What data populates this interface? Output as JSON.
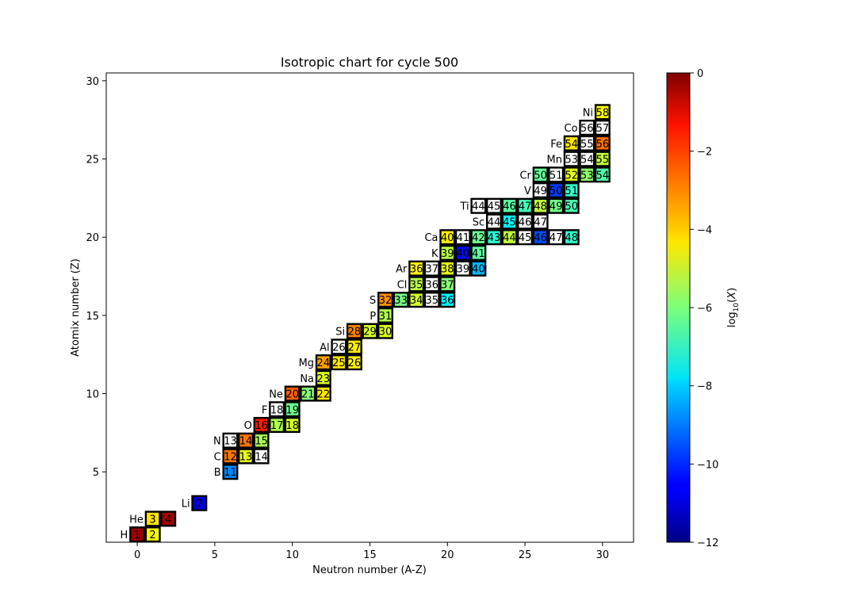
{
  "chart_data": {
    "type": "heatmap",
    "title": "Isotropic chart for cycle 500",
    "xlabel": "Neutron number (A-Z)",
    "ylabel": "Atomix number (Z)",
    "xlim": [
      -2,
      32
    ],
    "ylim": [
      0.5,
      30.5
    ],
    "xticks": [
      0,
      5,
      10,
      15,
      20,
      25,
      30
    ],
    "yticks": [
      5,
      10,
      15,
      20,
      25,
      30
    ],
    "grid": false,
    "colormap": "jet",
    "colorbar": {
      "label": "log10(X)",
      "range": [
        -12,
        0
      ],
      "ticks": [
        0,
        -2,
        -4,
        -6,
        -8,
        -10,
        -12
      ],
      "tick_labels": [
        "0",
        "−2",
        "−4",
        "−6",
        "−8",
        "−10",
        "−12"
      ]
    },
    "elements": [
      {
        "symbol": "H",
        "z": 1,
        "isotopes": [
          {
            "a": 1,
            "log_x": -0.3
          },
          {
            "a": 2,
            "log_x": -4.6
          }
        ]
      },
      {
        "symbol": "He",
        "z": 2,
        "isotopes": [
          {
            "a": 3,
            "log_x": -4.2
          },
          {
            "a": 4,
            "log_x": -0.4
          }
        ]
      },
      {
        "symbol": "Li",
        "z": 3,
        "isotopes": [
          {
            "a": 7,
            "log_x": -11.0
          }
        ]
      },
      {
        "symbol": "B",
        "z": 5,
        "isotopes": [
          {
            "a": 11,
            "log_x": -8.9
          }
        ]
      },
      {
        "symbol": "C",
        "z": 6,
        "isotopes": [
          {
            "a": 12,
            "log_x": -2.9
          },
          {
            "a": 13,
            "log_x": -4.8
          },
          {
            "a": 14,
            "log_x": null
          }
        ]
      },
      {
        "symbol": "N",
        "z": 7,
        "isotopes": [
          {
            "a": 13,
            "log_x": null
          },
          {
            "a": 14,
            "log_x": -2.9
          },
          {
            "a": 15,
            "log_x": -5.5
          }
        ]
      },
      {
        "symbol": "O",
        "z": 8,
        "isotopes": [
          {
            "a": 16,
            "log_x": -1.8
          },
          {
            "a": 17,
            "log_x": -5.4
          },
          {
            "a": 18,
            "log_x": -5.0
          }
        ]
      },
      {
        "symbol": "F",
        "z": 9,
        "isotopes": [
          {
            "a": 18,
            "log_x": null
          },
          {
            "a": 19,
            "log_x": -6.2
          }
        ]
      },
      {
        "symbol": "Ne",
        "z": 10,
        "isotopes": [
          {
            "a": 20,
            "log_x": -2.6
          },
          {
            "a": 21,
            "log_x": -5.9
          },
          {
            "a": 22,
            "log_x": -4.2
          }
        ]
      },
      {
        "symbol": "Na",
        "z": 11,
        "isotopes": [
          {
            "a": 23,
            "log_x": -4.9
          }
        ]
      },
      {
        "symbol": "Mg",
        "z": 12,
        "isotopes": [
          {
            "a": 24,
            "log_x": -3.4
          },
          {
            "a": 25,
            "log_x": -4.2
          },
          {
            "a": 26,
            "log_x": -4.4
          }
        ]
      },
      {
        "symbol": "Al",
        "z": 13,
        "isotopes": [
          {
            "a": 26,
            "log_x": null
          },
          {
            "a": 27,
            "log_x": -4.3
          }
        ]
      },
      {
        "symbol": "Si",
        "z": 14,
        "isotopes": [
          {
            "a": 28,
            "log_x": -3.0
          },
          {
            "a": 29,
            "log_x": -5.0
          },
          {
            "a": 30,
            "log_x": -4.9
          }
        ]
      },
      {
        "symbol": "P",
        "z": 15,
        "isotopes": [
          {
            "a": 31,
            "log_x": -5.4
          }
        ]
      },
      {
        "symbol": "S",
        "z": 16,
        "isotopes": [
          {
            "a": 32,
            "log_x": -3.2
          },
          {
            "a": 33,
            "log_x": -6.1
          },
          {
            "a": 34,
            "log_x": -5.0
          },
          {
            "a": 35,
            "log_x": null
          },
          {
            "a": 36,
            "log_x": -7.6
          }
        ]
      },
      {
        "symbol": "Cl",
        "z": 17,
        "isotopes": [
          {
            "a": 35,
            "log_x": -5.3
          },
          {
            "a": 36,
            "log_x": null
          },
          {
            "a": 37,
            "log_x": -5.9
          }
        ]
      },
      {
        "symbol": "Ar",
        "z": 18,
        "isotopes": [
          {
            "a": 36,
            "log_x": -4.4
          },
          {
            "a": 37,
            "log_x": null
          },
          {
            "a": 38,
            "log_x": -4.8
          },
          {
            "a": 39,
            "log_x": null
          },
          {
            "a": 40,
            "log_x": -8.3
          }
        ]
      },
      {
        "symbol": "K",
        "z": 19,
        "isotopes": [
          {
            "a": 39,
            "log_x": -5.3
          },
          {
            "a": 40,
            "log_x": -10.4
          },
          {
            "a": 41,
            "log_x": -6.4
          }
        ]
      },
      {
        "symbol": "Ca",
        "z": 20,
        "isotopes": [
          {
            "a": 40,
            "log_x": -4.3
          },
          {
            "a": 41,
            "log_x": null
          },
          {
            "a": 42,
            "log_x": -6.2
          },
          {
            "a": 43,
            "log_x": -7.0
          },
          {
            "a": 44,
            "log_x": -5.2
          },
          {
            "a": 45,
            "log_x": null
          },
          {
            "a": 46,
            "log_x": -9.6
          },
          {
            "a": 47,
            "log_x": null
          },
          {
            "a": 48,
            "log_x": -6.9
          }
        ]
      },
      {
        "symbol": "Sc",
        "z": 21,
        "isotopes": [
          {
            "a": 44,
            "log_x": null
          },
          {
            "a": 45,
            "log_x": -7.5
          },
          {
            "a": 46,
            "log_x": null
          },
          {
            "a": 47,
            "log_x": null
          }
        ]
      },
      {
        "symbol": "Ti",
        "z": 22,
        "isotopes": [
          {
            "a": 44,
            "log_x": null
          },
          {
            "a": 45,
            "log_x": null
          },
          {
            "a": 46,
            "log_x": -6.4
          },
          {
            "a": 47,
            "log_x": -6.7
          },
          {
            "a": 48,
            "log_x": -5.2
          },
          {
            "a": 49,
            "log_x": -6.1
          },
          {
            "a": 50,
            "log_x": -6.6
          }
        ]
      },
      {
        "symbol": "V",
        "z": 23,
        "isotopes": [
          {
            "a": 49,
            "log_x": null
          },
          {
            "a": 50,
            "log_x": -9.8
          },
          {
            "a": 51,
            "log_x": -6.9
          }
        ]
      },
      {
        "symbol": "Cr",
        "z": 24,
        "isotopes": [
          {
            "a": 50,
            "log_x": -6.3
          },
          {
            "a": 51,
            "log_x": null
          },
          {
            "a": 52,
            "log_x": -4.8
          },
          {
            "a": 53,
            "log_x": -5.8
          },
          {
            "a": 54,
            "log_x": -6.5
          }
        ]
      },
      {
        "symbol": "Mn",
        "z": 25,
        "isotopes": [
          {
            "a": 53,
            "log_x": null
          },
          {
            "a": 54,
            "log_x": null
          },
          {
            "a": 55,
            "log_x": -5.2
          }
        ]
      },
      {
        "symbol": "Fe",
        "z": 26,
        "isotopes": [
          {
            "a": 54,
            "log_x": -4.2
          },
          {
            "a": 55,
            "log_x": null
          },
          {
            "a": 56,
            "log_x": -2.8
          }
        ]
      },
      {
        "symbol": "Co",
        "z": 27,
        "isotopes": [
          {
            "a": 56,
            "log_x": null
          },
          {
            "a": 57,
            "log_x": null
          }
        ]
      },
      {
        "symbol": "Ni",
        "z": 28,
        "isotopes": [
          {
            "a": 58,
            "log_x": -4.6
          }
        ]
      }
    ]
  }
}
